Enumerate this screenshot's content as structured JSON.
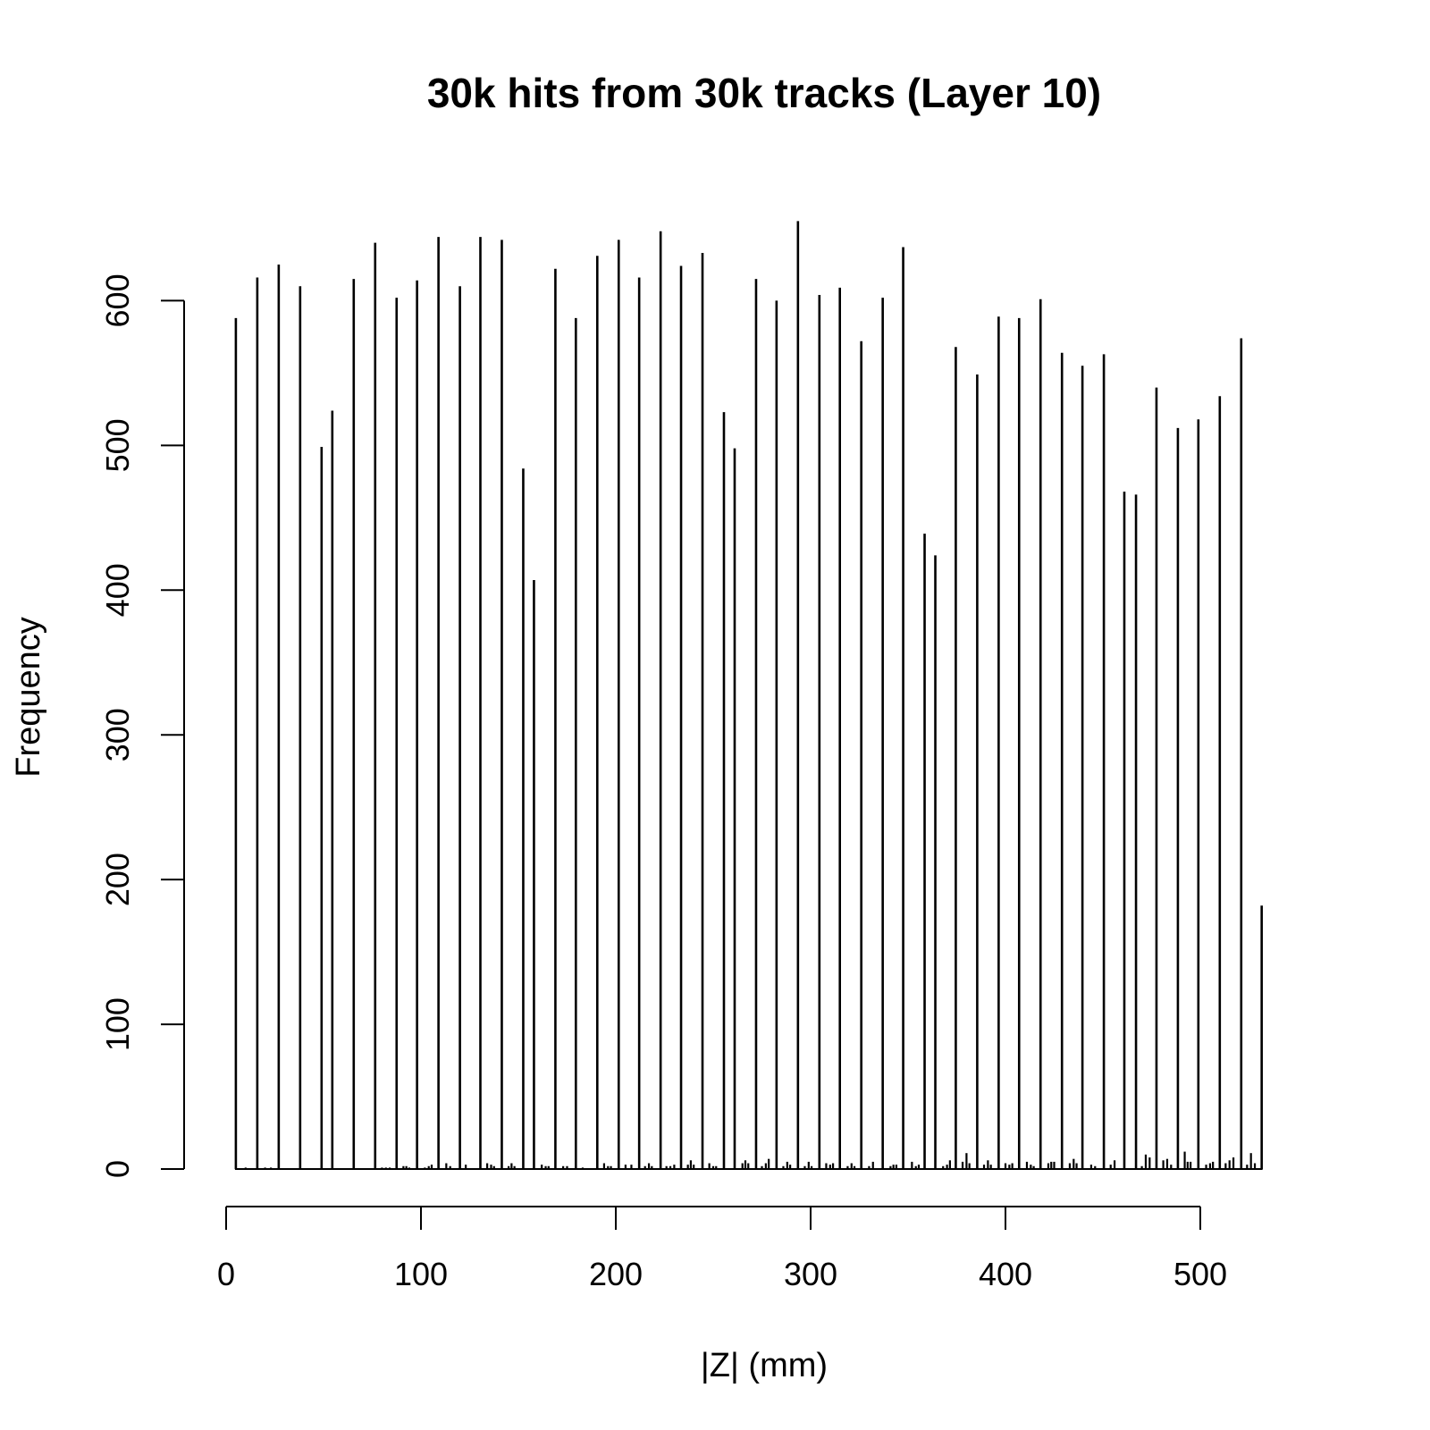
{
  "chart_data": {
    "type": "bar",
    "title": "30k hits from 30k tracks (Layer 10)",
    "xlabel": "|Z| (mm)",
    "ylabel": "Frequency",
    "xlim": [
      0,
      532
    ],
    "ylim": [
      0,
      660
    ],
    "xticks": [
      0,
      100,
      200,
      300,
      400,
      500
    ],
    "yticks": [
      0,
      100,
      200,
      300,
      400,
      500,
      600
    ],
    "grid": false,
    "legend": "none",
    "peaks": [
      {
        "x": 5.0,
        "y": 588
      },
      {
        "x": 16.0,
        "y": 616
      },
      {
        "x": 27.0,
        "y": 625
      },
      {
        "x": 38.0,
        "y": 610
      },
      {
        "x": 49.0,
        "y": 499
      },
      {
        "x": 54.5,
        "y": 524
      },
      {
        "x": 65.5,
        "y": 615
      },
      {
        "x": 76.5,
        "y": 640
      },
      {
        "x": 87.5,
        "y": 602
      },
      {
        "x": 98.0,
        "y": 614
      },
      {
        "x": 109.0,
        "y": 644
      },
      {
        "x": 120.0,
        "y": 610
      },
      {
        "x": 130.5,
        "y": 644
      },
      {
        "x": 141.5,
        "y": 642
      },
      {
        "x": 152.5,
        "y": 484
      },
      {
        "x": 158.0,
        "y": 407
      },
      {
        "x": 169.0,
        "y": 622
      },
      {
        "x": 179.5,
        "y": 588
      },
      {
        "x": 190.5,
        "y": 631
      },
      {
        "x": 201.5,
        "y": 642
      },
      {
        "x": 212.0,
        "y": 616
      },
      {
        "x": 223.0,
        "y": 648
      },
      {
        "x": 233.5,
        "y": 624
      },
      {
        "x": 244.5,
        "y": 633
      },
      {
        "x": 255.5,
        "y": 523
      },
      {
        "x": 261.0,
        "y": 498
      },
      {
        "x": 272.0,
        "y": 615
      },
      {
        "x": 282.5,
        "y": 600
      },
      {
        "x": 293.5,
        "y": 655
      },
      {
        "x": 304.5,
        "y": 604
      },
      {
        "x": 315.0,
        "y": 609
      },
      {
        "x": 326.0,
        "y": 572
      },
      {
        "x": 337.0,
        "y": 602
      },
      {
        "x": 347.5,
        "y": 637
      },
      {
        "x": 358.5,
        "y": 439
      },
      {
        "x": 364.0,
        "y": 424
      },
      {
        "x": 374.5,
        "y": 568
      },
      {
        "x": 385.5,
        "y": 549
      },
      {
        "x": 396.5,
        "y": 589
      },
      {
        "x": 407.0,
        "y": 588
      },
      {
        "x": 418.0,
        "y": 601
      },
      {
        "x": 429.0,
        "y": 564
      },
      {
        "x": 439.5,
        "y": 555
      },
      {
        "x": 450.5,
        "y": 563
      },
      {
        "x": 461.0,
        "y": 468
      },
      {
        "x": 467.0,
        "y": 466
      },
      {
        "x": 477.5,
        "y": 540
      },
      {
        "x": 488.5,
        "y": 512
      },
      {
        "x": 499.0,
        "y": 518
      },
      {
        "x": 510.0,
        "y": 534
      },
      {
        "x": 521.0,
        "y": 574
      },
      {
        "x": 531.5,
        "y": 182
      }
    ],
    "minor_bins": [
      {
        "x": 10,
        "y": 1
      },
      {
        "x": 20,
        "y": 1
      },
      {
        "x": 23,
        "y": 1
      },
      {
        "x": 80,
        "y": 1
      },
      {
        "x": 82,
        "y": 1
      },
      {
        "x": 84,
        "y": 1
      },
      {
        "x": 91,
        "y": 2
      },
      {
        "x": 92.5,
        "y": 2
      },
      {
        "x": 94,
        "y": 1
      },
      {
        "x": 102,
        "y": 1
      },
      {
        "x": 104,
        "y": 2
      },
      {
        "x": 105.5,
        "y": 3
      },
      {
        "x": 113,
        "y": 4
      },
      {
        "x": 115,
        "y": 2
      },
      {
        "x": 123,
        "y": 3
      },
      {
        "x": 134,
        "y": 4
      },
      {
        "x": 136,
        "y": 3
      },
      {
        "x": 137.5,
        "y": 2
      },
      {
        "x": 145,
        "y": 2
      },
      {
        "x": 146.5,
        "y": 4
      },
      {
        "x": 148,
        "y": 2
      },
      {
        "x": 162,
        "y": 3
      },
      {
        "x": 164,
        "y": 2
      },
      {
        "x": 165.5,
        "y": 2
      },
      {
        "x": 173,
        "y": 2
      },
      {
        "x": 175,
        "y": 2
      },
      {
        "x": 183,
        "y": 1
      },
      {
        "x": 194,
        "y": 4
      },
      {
        "x": 196,
        "y": 2
      },
      {
        "x": 197.5,
        "y": 2
      },
      {
        "x": 205,
        "y": 3
      },
      {
        "x": 208,
        "y": 3
      },
      {
        "x": 215,
        "y": 2
      },
      {
        "x": 217,
        "y": 4
      },
      {
        "x": 218.5,
        "y": 2
      },
      {
        "x": 226,
        "y": 2
      },
      {
        "x": 228,
        "y": 2
      },
      {
        "x": 230,
        "y": 3
      },
      {
        "x": 237,
        "y": 3
      },
      {
        "x": 238.5,
        "y": 6
      },
      {
        "x": 240,
        "y": 3
      },
      {
        "x": 248,
        "y": 4
      },
      {
        "x": 250,
        "y": 2
      },
      {
        "x": 251.5,
        "y": 2
      },
      {
        "x": 265,
        "y": 4
      },
      {
        "x": 266.5,
        "y": 6
      },
      {
        "x": 268,
        "y": 4
      },
      {
        "x": 275,
        "y": 2
      },
      {
        "x": 277,
        "y": 4
      },
      {
        "x": 278.5,
        "y": 7
      },
      {
        "x": 286,
        "y": 2
      },
      {
        "x": 288,
        "y": 5
      },
      {
        "x": 289.5,
        "y": 3
      },
      {
        "x": 297,
        "y": 2
      },
      {
        "x": 299,
        "y": 5
      },
      {
        "x": 300.5,
        "y": 2
      },
      {
        "x": 308,
        "y": 4
      },
      {
        "x": 310,
        "y": 3
      },
      {
        "x": 311.5,
        "y": 4
      },
      {
        "x": 319,
        "y": 2
      },
      {
        "x": 321,
        "y": 4
      },
      {
        "x": 322.5,
        "y": 2
      },
      {
        "x": 330,
        "y": 2
      },
      {
        "x": 332,
        "y": 5
      },
      {
        "x": 341,
        "y": 2
      },
      {
        "x": 342.5,
        "y": 3
      },
      {
        "x": 344,
        "y": 3
      },
      {
        "x": 352,
        "y": 5
      },
      {
        "x": 354,
        "y": 2
      },
      {
        "x": 355.5,
        "y": 3
      },
      {
        "x": 368,
        "y": 2
      },
      {
        "x": 370,
        "y": 3
      },
      {
        "x": 371.5,
        "y": 6
      },
      {
        "x": 378,
        "y": 5
      },
      {
        "x": 380,
        "y": 11
      },
      {
        "x": 381.5,
        "y": 4
      },
      {
        "x": 389,
        "y": 3
      },
      {
        "x": 391,
        "y": 6
      },
      {
        "x": 392.5,
        "y": 3
      },
      {
        "x": 400,
        "y": 4
      },
      {
        "x": 402,
        "y": 3
      },
      {
        "x": 403.5,
        "y": 4
      },
      {
        "x": 411,
        "y": 5
      },
      {
        "x": 413,
        "y": 3
      },
      {
        "x": 414.5,
        "y": 2
      },
      {
        "x": 422,
        "y": 4
      },
      {
        "x": 423.5,
        "y": 5
      },
      {
        "x": 425,
        "y": 5
      },
      {
        "x": 433,
        "y": 4
      },
      {
        "x": 435,
        "y": 7
      },
      {
        "x": 436.5,
        "y": 4
      },
      {
        "x": 444,
        "y": 3
      },
      {
        "x": 446,
        "y": 2
      },
      {
        "x": 454,
        "y": 3
      },
      {
        "x": 456,
        "y": 6
      },
      {
        "x": 470,
        "y": 2
      },
      {
        "x": 472,
        "y": 10
      },
      {
        "x": 474,
        "y": 8
      },
      {
        "x": 481,
        "y": 6
      },
      {
        "x": 483,
        "y": 7
      },
      {
        "x": 485,
        "y": 3
      },
      {
        "x": 492,
        "y": 12
      },
      {
        "x": 493.5,
        "y": 5
      },
      {
        "x": 495,
        "y": 5
      },
      {
        "x": 503,
        "y": 3
      },
      {
        "x": 505,
        "y": 4
      },
      {
        "x": 506.5,
        "y": 5
      },
      {
        "x": 513,
        "y": 4
      },
      {
        "x": 515,
        "y": 6
      },
      {
        "x": 517,
        "y": 8
      },
      {
        "x": 524,
        "y": 3
      },
      {
        "x": 526,
        "y": 11
      },
      {
        "x": 528,
        "y": 4
      }
    ]
  }
}
